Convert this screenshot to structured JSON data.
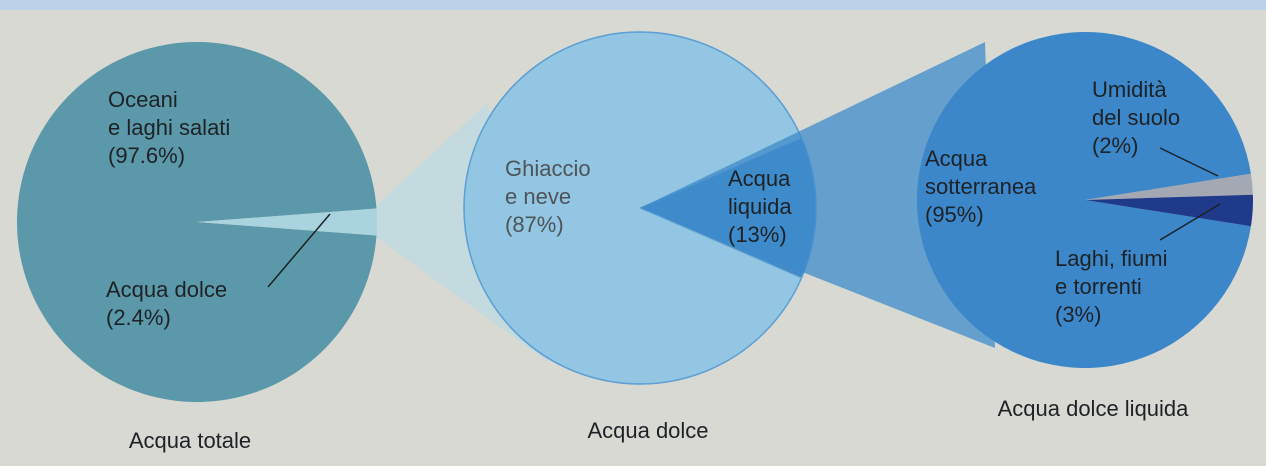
{
  "chart_data": [
    {
      "type": "pie",
      "title": "Acqua totale",
      "categories": [
        "Oceani\ne laghi salati",
        "Acqua dolce"
      ],
      "values": [
        97.6,
        2.4
      ],
      "value_labels": [
        "(97.6%)",
        "(2.4%)"
      ],
      "colors": [
        "#5b98a9",
        "#a9d3df"
      ]
    },
    {
      "type": "pie",
      "title": "Acqua dolce",
      "categories": [
        "Ghiaccio\ne neve",
        "Acqua\nliquida"
      ],
      "values": [
        87,
        13
      ],
      "value_labels": [
        "(87%)",
        "(13%)"
      ],
      "colors": [
        "#93c6e3",
        "#3f8bcb"
      ]
    },
    {
      "type": "pie",
      "title": "Acqua dolce liquida",
      "categories": [
        "Acqua\nsotterranea",
        "Umidità\ndel suolo",
        "Laghi, fiumi\ne torrenti"
      ],
      "values": [
        95,
        2,
        3
      ],
      "value_labels": [
        "(95%)",
        "(2%)",
        "(3%)"
      ],
      "colors": [
        "#3b87c9",
        "#a3a8b2",
        "#1f3a8a"
      ]
    }
  ]
}
